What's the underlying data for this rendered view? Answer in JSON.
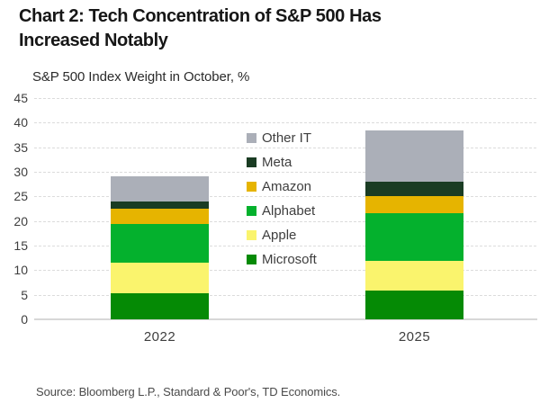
{
  "header": {
    "title_line1": "Chart 2: Tech Concentration of S&P 500 Has",
    "title_line2": "Increased Notably"
  },
  "footer": {
    "source": "Source: Bloomberg L.P., Standard & Poor's, TD Economics."
  },
  "chart_data": {
    "type": "bar",
    "stacked": true,
    "title": "Chart 2: Tech Concentration of S&P 500 Has Increased Notably",
    "subtitle": "S&P 500 Index Weight in October, %",
    "categories": [
      "2022",
      "2025"
    ],
    "series": [
      {
        "name": "Microsoft",
        "color": "#058A05",
        "values": [
          5.3,
          5.8
        ]
      },
      {
        "name": "Apple",
        "color": "#FAF46D",
        "values": [
          6.3,
          6.1
        ]
      },
      {
        "name": "Alphabet",
        "color": "#04B12D",
        "values": [
          7.7,
          9.6
        ]
      },
      {
        "name": "Amazon",
        "color": "#E6B400",
        "values": [
          3.2,
          3.5
        ]
      },
      {
        "name": "Meta",
        "color": "#1A3C23",
        "values": [
          1.4,
          3.0
        ]
      },
      {
        "name": "Other IT",
        "color": "#ABAFB8",
        "values": [
          5.2,
          10.5
        ]
      }
    ],
    "stack_order": "bottom-to-top",
    "y_axis": {
      "min": 0,
      "max": 45,
      "step": 5,
      "ticks": [
        45,
        40,
        35,
        30,
        25,
        20,
        15,
        10,
        5,
        0
      ]
    },
    "legend": {
      "order_top_to_bottom": [
        "Other IT",
        "Meta",
        "Amazon",
        "Alphabet",
        "Apple",
        "Microsoft"
      ],
      "position": "inside-center"
    },
    "grid": "dashed-horizontal"
  }
}
